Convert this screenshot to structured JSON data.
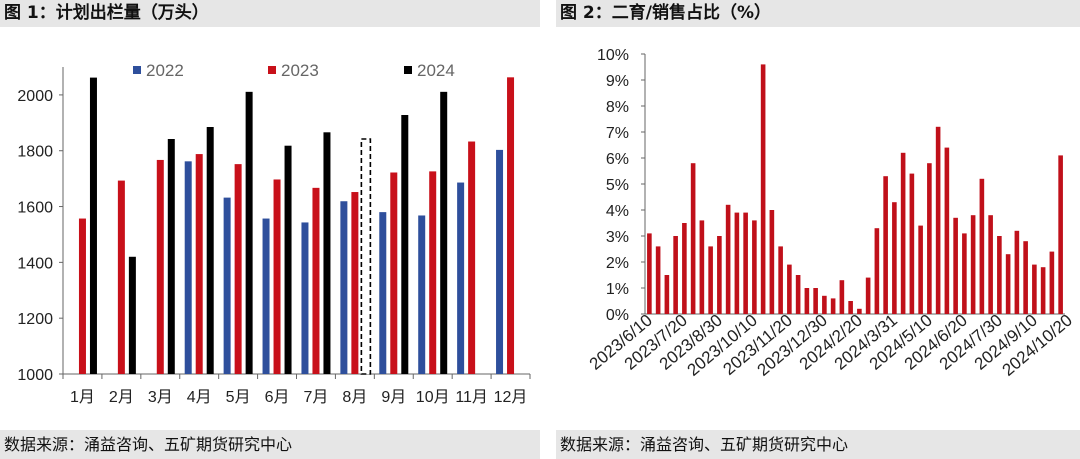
{
  "left": {
    "header": "图 1：计划出栏量（万头）",
    "source": "数据来源：涌益咨询、五矿期货研究中心",
    "chart_data": {
      "type": "bar",
      "categories": [
        "1月",
        "2月",
        "3月",
        "4月",
        "5月",
        "6月",
        "7月",
        "8月",
        "9月",
        "10月",
        "11月",
        "12月"
      ],
      "ylim": [
        1000,
        2100
      ],
      "yticks": [
        1000,
        1200,
        1400,
        1600,
        1800,
        2000
      ],
      "legend_position": "top",
      "series": [
        {
          "name": "2022",
          "color": "#2e4f9c",
          "values": [
            null,
            null,
            null,
            1762,
            1632,
            1557,
            1543,
            1619,
            1580,
            1568,
            1686,
            1803
          ]
        },
        {
          "name": "2023",
          "color": "#c8101a",
          "values": [
            1557,
            1693,
            1767,
            1788,
            1752,
            1697,
            1667,
            1652,
            1722,
            1726,
            1833,
            2063
          ]
        },
        {
          "name": "2024",
          "color": "#000000",
          "values": [
            2062,
            1420,
            1842,
            1885,
            2011,
            1818,
            1866,
            1842,
            1928,
            2011,
            null,
            null
          ]
        }
      ],
      "forecast_index": 7
    }
  },
  "right": {
    "header": "图 2：二育/销售占比（%）",
    "source": "数据来源：涌益咨询、五矿期货研究中心",
    "chart_data": {
      "type": "bar",
      "color": "#c0101a",
      "ylim": [
        0,
        10
      ],
      "yticks": [
        "0%",
        "1%",
        "2%",
        "3%",
        "4%",
        "5%",
        "6%",
        "7%",
        "8%",
        "9%",
        "10%"
      ],
      "xtick_labels": [
        "2023/6/10",
        "2023/7/20",
        "2023/8/30",
        "2023/10/10",
        "2023/11/20",
        "2023/12/30",
        "2024/2/20",
        "2024/3/31",
        "2024/5/10",
        "2024/6/20",
        "2024/7/30",
        "2024/9/10",
        "2024/10/20"
      ],
      "values": [
        3.1,
        2.6,
        1.5,
        3.0,
        3.5,
        5.8,
        3.6,
        2.6,
        3.0,
        4.2,
        3.9,
        3.9,
        3.6,
        9.6,
        4.0,
        2.6,
        1.9,
        1.5,
        1.0,
        1.0,
        0.7,
        0.6,
        1.3,
        0.5,
        0.2,
        1.4,
        3.3,
        5.3,
        4.3,
        6.2,
        5.4,
        3.4,
        5.8,
        7.2,
        6.4,
        3.7,
        3.1,
        3.8,
        5.2,
        3.8,
        3.0,
        2.3,
        3.2,
        2.8,
        1.9,
        1.8,
        2.4,
        6.1
      ]
    }
  }
}
